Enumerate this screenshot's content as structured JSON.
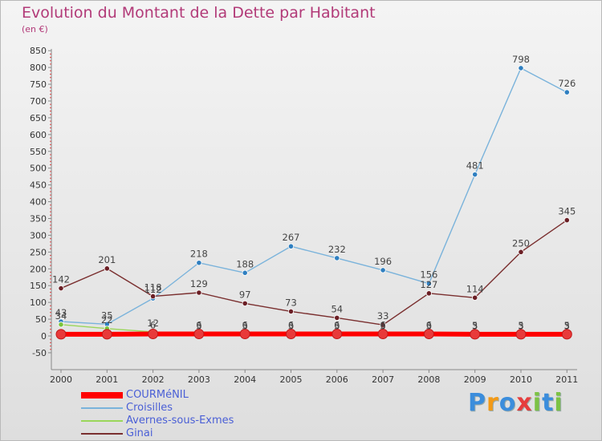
{
  "title": "Evolution du Montant de la Dette par Habitant",
  "subtitle": "(en €)",
  "brand": {
    "text": "Proxiti",
    "colors": [
      "#3b8ddc",
      "#f39a16",
      "#3b8ddc",
      "#e63d3d",
      "#7cc244",
      "#3b8ddc",
      "#7cc244"
    ]
  },
  "chart_data": {
    "type": "line",
    "x": [
      "2000",
      "2001",
      "2002",
      "2003",
      "2004",
      "2005",
      "2006",
      "2007",
      "2008",
      "2009",
      "2010",
      "2011"
    ],
    "ylim": [
      -50,
      850
    ],
    "yticks": [
      -50,
      0,
      50,
      100,
      150,
      200,
      250,
      300,
      350,
      400,
      450,
      500,
      550,
      600,
      650,
      700,
      750,
      800,
      850
    ],
    "grid": false,
    "legend_placement": "bottom-left",
    "series": [
      {
        "name": "COURMéNIL",
        "color": "#ff0000",
        "marker": "#e83a3a",
        "values": [
          5,
          5,
          6,
          6,
          6,
          6,
          6,
          6,
          6,
          5,
          5,
          5
        ],
        "labels": [
          "",
          "",
          "6",
          "6",
          "6",
          "6",
          "6",
          "6",
          "6",
          "5",
          "5",
          "5"
        ]
      },
      {
        "name": "Croisilles",
        "color": "#7ab3db",
        "marker": "#2f7fc0",
        "values": [
          43,
          35,
          112,
          218,
          188,
          267,
          232,
          196,
          156,
          481,
          798,
          726
        ],
        "labels": [
          "43",
          "35",
          "112",
          "218",
          "188",
          "267",
          "232",
          "196",
          "156",
          "481",
          "798",
          "726"
        ]
      },
      {
        "name": "Avernes-sous-Exmes",
        "color": "#9ad65a",
        "marker": "#7ac43a",
        "values": [
          34,
          22,
          12,
          3,
          3,
          3,
          3,
          3,
          3,
          3,
          3,
          3
        ],
        "labels": [
          "34",
          "22",
          "12",
          "3",
          "3",
          "3",
          "3",
          "3",
          "3",
          "3",
          "3",
          "3"
        ]
      },
      {
        "name": "Ginai",
        "color": "#7a2f2f",
        "marker": "#6b1f25",
        "values": [
          142,
          201,
          118,
          129,
          97,
          73,
          54,
          33,
          127,
          114,
          250,
          345
        ],
        "labels": [
          "142",
          "201",
          "118",
          "129",
          "97",
          "73",
          "54",
          "33",
          "127",
          "114",
          "250",
          "345"
        ]
      }
    ]
  }
}
